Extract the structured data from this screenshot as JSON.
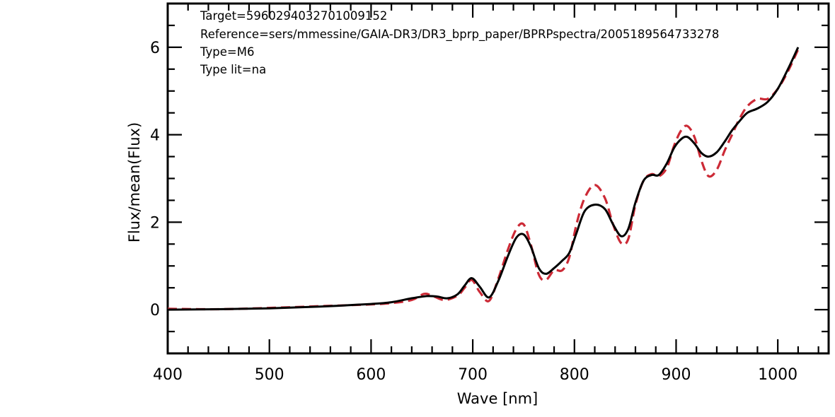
{
  "chart_data": {
    "type": "line",
    "title": "",
    "xlabel": "Wave [nm]",
    "ylabel": "Flux/mean(Flux)",
    "xlim": [
      400,
      1050
    ],
    "ylim": [
      -1,
      7
    ],
    "x_ticks": [
      "400",
      "500",
      "600",
      "700",
      "800",
      "900",
      "1000"
    ],
    "y_ticks": [
      "0",
      "2",
      "4",
      "6"
    ],
    "grid": false,
    "annotations": [
      "Target=5960294032701009152",
      "Reference=sers/mmessine/GAIA-DR3/DR3_bprp_paper/BPRPspectra/2005189564733278",
      "Type=M6",
      "Type lit=na"
    ],
    "series": [
      {
        "style": "solid",
        "color": "#000000",
        "x": [
          400,
          450,
          500,
          550,
          600,
          620,
          640,
          655,
          665,
          675,
          685,
          692,
          699,
          707,
          716,
          725,
          735,
          743,
          750,
          757,
          765,
          772,
          780,
          788,
          795,
          802,
          810,
          820,
          830,
          838,
          846,
          853,
          860,
          868,
          876,
          883,
          891,
          898,
          905,
          911,
          918,
          925,
          932,
          940,
          948,
          955,
          962,
          970,
          980,
          990,
          1000,
          1010,
          1020
        ],
        "y": [
          0.0,
          0.01,
          0.03,
          0.07,
          0.13,
          0.17,
          0.26,
          0.31,
          0.3,
          0.26,
          0.35,
          0.55,
          0.72,
          0.52,
          0.28,
          0.65,
          1.25,
          1.65,
          1.72,
          1.45,
          0.95,
          0.82,
          0.95,
          1.12,
          1.3,
          1.75,
          2.25,
          2.4,
          2.3,
          1.95,
          1.68,
          1.85,
          2.45,
          2.95,
          3.08,
          3.08,
          3.35,
          3.7,
          3.9,
          3.95,
          3.8,
          3.58,
          3.5,
          3.6,
          3.85,
          4.1,
          4.3,
          4.5,
          4.6,
          4.75,
          5.05,
          5.5,
          6.0
        ]
      },
      {
        "style": "dashed",
        "color": "#cc2a36",
        "x": [
          400,
          450,
          500,
          550,
          600,
          620,
          640,
          652,
          660,
          672,
          685,
          692,
          699,
          707,
          716,
          725,
          735,
          743,
          750,
          757,
          765,
          772,
          780,
          788,
          795,
          802,
          810,
          820,
          830,
          838,
          846,
          853,
          860,
          868,
          876,
          883,
          891,
          898,
          905,
          911,
          918,
          925,
          932,
          940,
          948,
          955,
          962,
          970,
          980,
          990,
          1000,
          1010,
          1020
        ],
        "y": [
          0.02,
          0.01,
          0.04,
          0.08,
          0.12,
          0.15,
          0.22,
          0.36,
          0.32,
          0.22,
          0.32,
          0.5,
          0.68,
          0.4,
          0.2,
          0.7,
          1.4,
          1.85,
          1.95,
          1.5,
          0.8,
          0.68,
          0.9,
          0.9,
          1.2,
          1.95,
          2.55,
          2.85,
          2.55,
          1.95,
          1.52,
          1.62,
          2.4,
          2.95,
          3.1,
          3.05,
          3.25,
          3.75,
          4.1,
          4.2,
          3.95,
          3.4,
          3.05,
          3.2,
          3.65,
          4.0,
          4.35,
          4.65,
          4.82,
          4.82,
          5.05,
          5.45,
          5.95
        ]
      }
    ]
  }
}
